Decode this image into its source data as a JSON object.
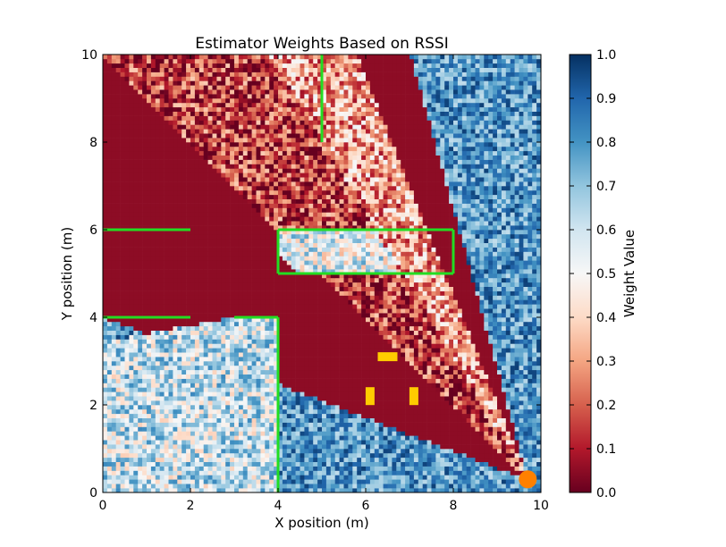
{
  "chart_data": {
    "type": "heatmap",
    "title": "Estimator Weights Based on RSSI",
    "xlabel": "X position (m)",
    "ylabel": "Y position (m)",
    "xlim": [
      0,
      10
    ],
    "ylim": [
      0,
      10
    ],
    "x_ticks": [
      "0",
      "2",
      "4",
      "6",
      "8",
      "10"
    ],
    "y_ticks": [
      "0",
      "2",
      "4",
      "6",
      "8",
      "10"
    ],
    "grid": false,
    "colorbar": {
      "label": "Weight Value",
      "range": [
        0.0,
        1.0
      ],
      "ticks": [
        "0.0",
        "0.1",
        "0.2",
        "0.3",
        "0.4",
        "0.5",
        "0.6",
        "0.7",
        "0.8",
        "0.9",
        "1.0"
      ],
      "colormap": "RdBu"
    },
    "colors": {
      "walls": "#22dd22",
      "anchors": "#ffcc00",
      "source": "#ff8000"
    },
    "walls": [
      {
        "x": [
          5,
          5
        ],
        "y": [
          10,
          8
        ]
      },
      {
        "x": [
          0,
          2
        ],
        "y": [
          6,
          6
        ]
      },
      {
        "x": [
          4,
          8
        ],
        "y": [
          6,
          6
        ]
      },
      {
        "x": [
          4,
          4
        ],
        "y": [
          6,
          5
        ]
      },
      {
        "x": [
          8,
          8
        ],
        "y": [
          6,
          5
        ]
      },
      {
        "x": [
          4,
          8
        ],
        "y": [
          5,
          5
        ]
      },
      {
        "x": [
          0,
          2
        ],
        "y": [
          4,
          4
        ]
      },
      {
        "x": [
          3,
          4
        ],
        "y": [
          4,
          4
        ]
      },
      {
        "x": [
          4,
          4
        ],
        "y": [
          4,
          0
        ]
      }
    ],
    "anchors": [
      {
        "x": 6.1,
        "y": 2.2,
        "orientation": "vertical"
      },
      {
        "x": 7.1,
        "y": 2.2,
        "orientation": "vertical"
      },
      {
        "x": 6.5,
        "y": 3.1,
        "orientation": "horizontal"
      }
    ],
    "source": {
      "x": 9.7,
      "y": 0.3
    }
  }
}
